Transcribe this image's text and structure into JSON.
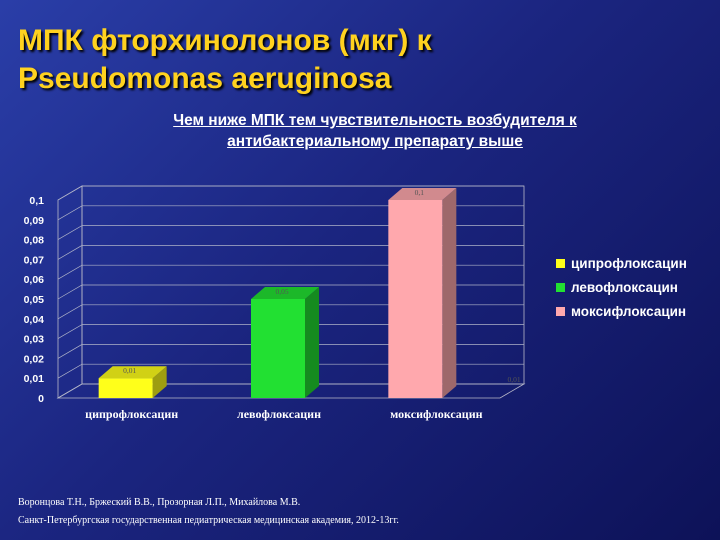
{
  "title": {
    "line1": "МПК фторхинолонов (мкг) к",
    "line2": "Pseudomonas aeruginosa"
  },
  "subtitle": {
    "line1": "Чем ниже МПК тем чувствительность возбудителя к",
    "line2": "антибактериальному  препарату выше"
  },
  "chart_data": {
    "type": "bar",
    "categories": [
      "ципрофлоксацин",
      "левофлоксацин",
      "моксифлоксацин"
    ],
    "series": [
      {
        "name": "ципрофлоксацин",
        "color": "#ffff1a",
        "values": [
          0.01,
          null,
          null
        ]
      },
      {
        "name": "левофлоксацин",
        "color": "#22e032",
        "values": [
          null,
          0.05,
          null
        ]
      },
      {
        "name": "моксифлоксацин",
        "color": "#ffa8ad",
        "values": [
          null,
          null,
          0.1
        ]
      }
    ],
    "data_labels": [
      "0,01",
      "0,05",
      "0,1"
    ],
    "y_ticks": [
      "0",
      "0,01",
      "0,02",
      "0,03",
      "0,04",
      "0,05",
      "0,06",
      "0,07",
      "0,08",
      "0,09",
      "0,1"
    ],
    "ylim": [
      0,
      0.1
    ],
    "stray_label": "0,01",
    "grid": true,
    "three_d": true,
    "legend_position": "right",
    "title": "",
    "xlabel": "",
    "ylabel": ""
  },
  "footer": {
    "line1": "Воронцова Т.Н., Бржеский В.В., Прозорная Л.П., Михайлова М.В.",
    "line2": "Санкт-Петербургская государственная педиатрическая медицинская академия, 2012-13гг."
  }
}
